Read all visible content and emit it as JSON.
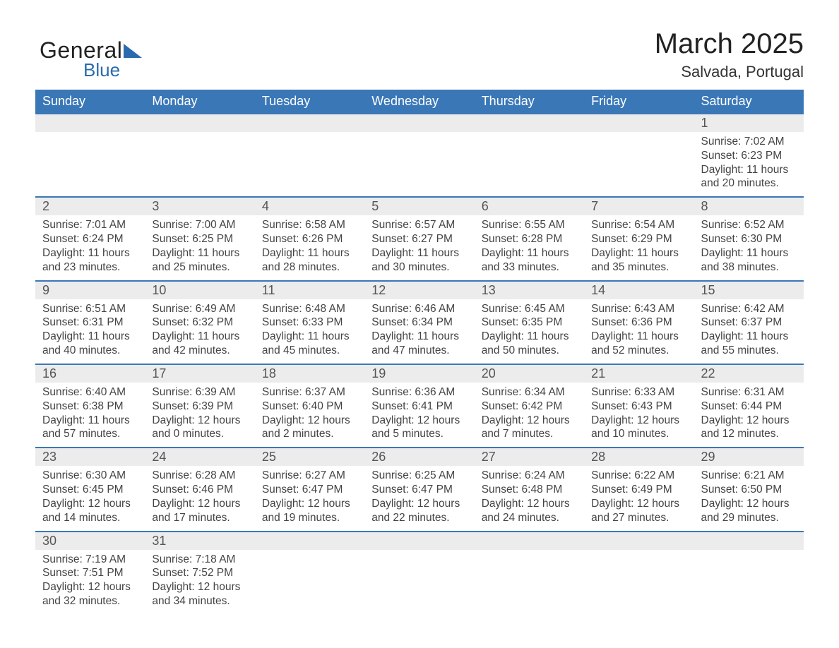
{
  "brand": {
    "word1": "General",
    "word2": "Blue",
    "accent": "#2a6bb0",
    "text_color": "#222"
  },
  "title": "March 2025",
  "location": "Salvada, Portugal",
  "header_bg": "#3a77b7",
  "daynum_bg": "#ececec",
  "border_color": "#3a77b7",
  "days_of_week": [
    "Sunday",
    "Monday",
    "Tuesday",
    "Wednesday",
    "Thursday",
    "Friday",
    "Saturday"
  ],
  "weeks": [
    [
      null,
      null,
      null,
      null,
      null,
      null,
      {
        "n": "1",
        "sr": "7:02 AM",
        "ss": "6:23 PM",
        "dl": "11 hours and 20 minutes."
      }
    ],
    [
      {
        "n": "2",
        "sr": "7:01 AM",
        "ss": "6:24 PM",
        "dl": "11 hours and 23 minutes."
      },
      {
        "n": "3",
        "sr": "7:00 AM",
        "ss": "6:25 PM",
        "dl": "11 hours and 25 minutes."
      },
      {
        "n": "4",
        "sr": "6:58 AM",
        "ss": "6:26 PM",
        "dl": "11 hours and 28 minutes."
      },
      {
        "n": "5",
        "sr": "6:57 AM",
        "ss": "6:27 PM",
        "dl": "11 hours and 30 minutes."
      },
      {
        "n": "6",
        "sr": "6:55 AM",
        "ss": "6:28 PM",
        "dl": "11 hours and 33 minutes."
      },
      {
        "n": "7",
        "sr": "6:54 AM",
        "ss": "6:29 PM",
        "dl": "11 hours and 35 minutes."
      },
      {
        "n": "8",
        "sr": "6:52 AM",
        "ss": "6:30 PM",
        "dl": "11 hours and 38 minutes."
      }
    ],
    [
      {
        "n": "9",
        "sr": "6:51 AM",
        "ss": "6:31 PM",
        "dl": "11 hours and 40 minutes."
      },
      {
        "n": "10",
        "sr": "6:49 AM",
        "ss": "6:32 PM",
        "dl": "11 hours and 42 minutes."
      },
      {
        "n": "11",
        "sr": "6:48 AM",
        "ss": "6:33 PM",
        "dl": "11 hours and 45 minutes."
      },
      {
        "n": "12",
        "sr": "6:46 AM",
        "ss": "6:34 PM",
        "dl": "11 hours and 47 minutes."
      },
      {
        "n": "13",
        "sr": "6:45 AM",
        "ss": "6:35 PM",
        "dl": "11 hours and 50 minutes."
      },
      {
        "n": "14",
        "sr": "6:43 AM",
        "ss": "6:36 PM",
        "dl": "11 hours and 52 minutes."
      },
      {
        "n": "15",
        "sr": "6:42 AM",
        "ss": "6:37 PM",
        "dl": "11 hours and 55 minutes."
      }
    ],
    [
      {
        "n": "16",
        "sr": "6:40 AM",
        "ss": "6:38 PM",
        "dl": "11 hours and 57 minutes."
      },
      {
        "n": "17",
        "sr": "6:39 AM",
        "ss": "6:39 PM",
        "dl": "12 hours and 0 minutes."
      },
      {
        "n": "18",
        "sr": "6:37 AM",
        "ss": "6:40 PM",
        "dl": "12 hours and 2 minutes."
      },
      {
        "n": "19",
        "sr": "6:36 AM",
        "ss": "6:41 PM",
        "dl": "12 hours and 5 minutes."
      },
      {
        "n": "20",
        "sr": "6:34 AM",
        "ss": "6:42 PM",
        "dl": "12 hours and 7 minutes."
      },
      {
        "n": "21",
        "sr": "6:33 AM",
        "ss": "6:43 PM",
        "dl": "12 hours and 10 minutes."
      },
      {
        "n": "22",
        "sr": "6:31 AM",
        "ss": "6:44 PM",
        "dl": "12 hours and 12 minutes."
      }
    ],
    [
      {
        "n": "23",
        "sr": "6:30 AM",
        "ss": "6:45 PM",
        "dl": "12 hours and 14 minutes."
      },
      {
        "n": "24",
        "sr": "6:28 AM",
        "ss": "6:46 PM",
        "dl": "12 hours and 17 minutes."
      },
      {
        "n": "25",
        "sr": "6:27 AM",
        "ss": "6:47 PM",
        "dl": "12 hours and 19 minutes."
      },
      {
        "n": "26",
        "sr": "6:25 AM",
        "ss": "6:47 PM",
        "dl": "12 hours and 22 minutes."
      },
      {
        "n": "27",
        "sr": "6:24 AM",
        "ss": "6:48 PM",
        "dl": "12 hours and 24 minutes."
      },
      {
        "n": "28",
        "sr": "6:22 AM",
        "ss": "6:49 PM",
        "dl": "12 hours and 27 minutes."
      },
      {
        "n": "29",
        "sr": "6:21 AM",
        "ss": "6:50 PM",
        "dl": "12 hours and 29 minutes."
      }
    ],
    [
      {
        "n": "30",
        "sr": "7:19 AM",
        "ss": "7:51 PM",
        "dl": "12 hours and 32 minutes."
      },
      {
        "n": "31",
        "sr": "7:18 AM",
        "ss": "7:52 PM",
        "dl": "12 hours and 34 minutes."
      },
      null,
      null,
      null,
      null,
      null
    ]
  ],
  "labels": {
    "sunrise": "Sunrise:",
    "sunset": "Sunset:",
    "daylight": "Daylight:"
  }
}
